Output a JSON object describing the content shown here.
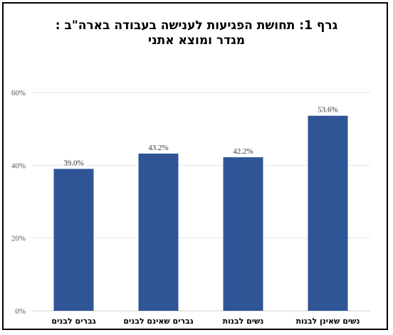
{
  "chart_data": {
    "type": "bar",
    "title_lines": [
      "גרף 1: תחושת הפגיעות לענישה בעבודה בארה\"ב :",
      "מגדר ומוצא אתני"
    ],
    "categories": [
      "נשים שאינן לבנות",
      "נשים לבנות",
      "גברים שאינם לבנים",
      "גברים לבנים"
    ],
    "values": [
      53.6,
      42.2,
      43.2,
      39.0
    ],
    "data_labels": [
      "53.6%",
      "42.2%",
      "43.2%",
      "39.0%"
    ],
    "y_ticks": [
      0,
      20,
      40,
      60
    ],
    "y_tick_labels": [
      "0%",
      "20%",
      "40%",
      "60%"
    ],
    "ylim": [
      0,
      60
    ],
    "xlabel": "",
    "ylabel": "",
    "grid": true,
    "legend": "none",
    "category_order": "right-to-left",
    "bar_color": "#2f5597",
    "grid_color": "#e6e6e6",
    "axis_color": "#d0d0d0"
  }
}
